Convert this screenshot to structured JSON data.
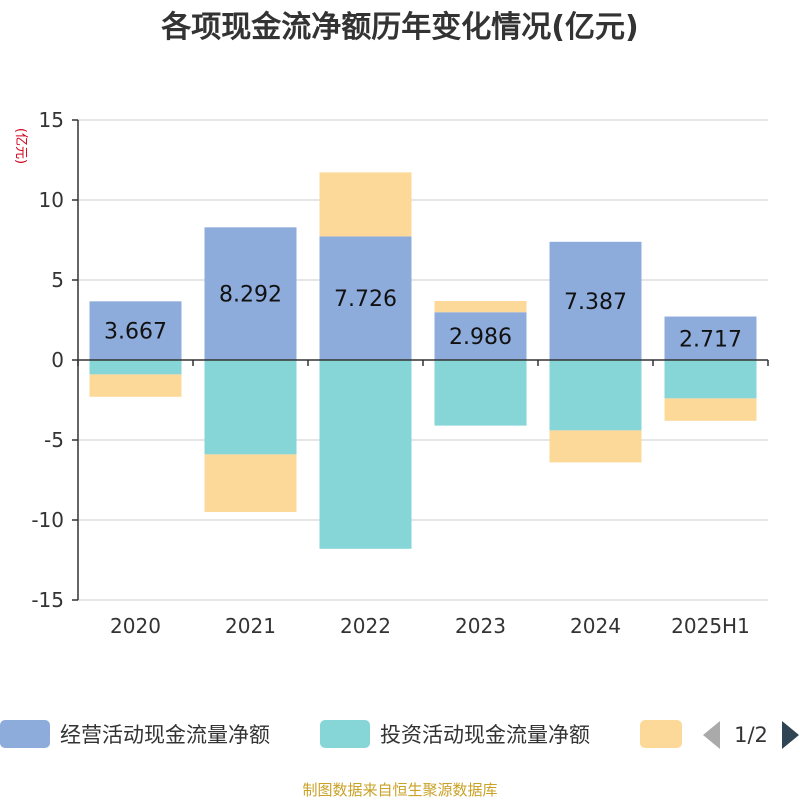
{
  "chart_data": {
    "type": "bar",
    "stacked": true,
    "title": "各项现金流净额历年变化情况(亿元)",
    "unit_label": "(亿元)",
    "categories": [
      "2020",
      "2021",
      "2022",
      "2023",
      "2024",
      "2025H1"
    ],
    "ylim": [
      -15,
      15
    ],
    "yticks": [
      15,
      10,
      5,
      0,
      -5,
      -10,
      -15
    ],
    "grid": true,
    "legend_position": "bottom",
    "series": [
      {
        "name": "经营活动现金流量净额",
        "color": "#8eacdb",
        "values": [
          3.667,
          8.292,
          7.726,
          2.986,
          7.387,
          2.717
        ],
        "show_labels": true
      },
      {
        "name": "投资活动现金流量净额",
        "color": "#86d6d8",
        "values": [
          -0.9,
          -5.9,
          -11.8,
          -4.1,
          -4.4,
          -2.4
        ],
        "show_labels": false
      },
      {
        "name": "",
        "color": "#fdd999",
        "values": [
          -1.4,
          -3.6,
          4.0,
          0.7,
          -2.0,
          -1.4
        ],
        "show_labels": false
      }
    ],
    "legend_page": "1/2",
    "source": "制图数据来自恒生聚源数据库"
  }
}
